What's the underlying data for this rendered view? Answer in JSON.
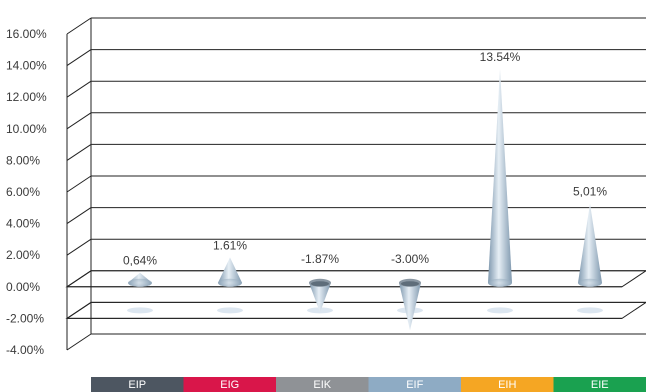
{
  "chart_data": {
    "type": "bar",
    "title": "",
    "xlabel": "",
    "ylabel": "",
    "ylim": [
      -4,
      16
    ],
    "y_ticks": [
      "-4.00%",
      "-2.00%",
      "0.00%",
      "2.00%",
      "4.00%",
      "6.00%",
      "8.00%",
      "10.00%",
      "12.00%",
      "14.00%",
      "16.00%"
    ],
    "categories": [
      "EIP",
      "EIG",
      "EIK",
      "EIF",
      "EIH",
      "EIE"
    ],
    "category_colors": [
      "#4d5661",
      "#d9164a",
      "#8f9296",
      "#8eabc4",
      "#f5a623",
      "#1aa150"
    ],
    "values": [
      0.64,
      1.61,
      -1.87,
      -3.0,
      13.54,
      5.01
    ],
    "data_labels": [
      "0,64%",
      "1.61%",
      "-1.87%",
      "-3.00%",
      "13.54%",
      "5,01%"
    ],
    "grid": true,
    "mark_color": "#a9bfd2"
  }
}
